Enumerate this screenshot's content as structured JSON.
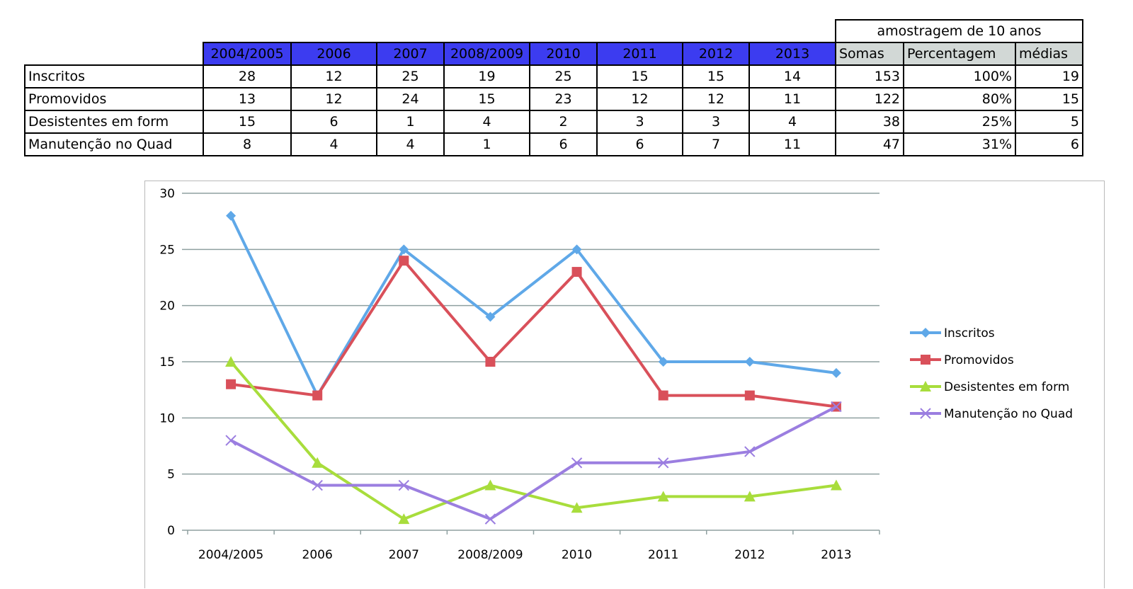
{
  "table": {
    "sample_title": "amostragem de 10 anos",
    "years": [
      "2004/2005",
      "2006",
      "2007",
      "2008/2009",
      "2010",
      "2011",
      "2012",
      "2013"
    ],
    "summary_headers": [
      "Somas",
      "Percentagem",
      "médias"
    ],
    "rows": [
      {
        "label": "Inscritos",
        "values": [
          "28",
          "12",
          "25",
          "19",
          "25",
          "15",
          "15",
          "14"
        ],
        "summary": [
          "153",
          "100%",
          "19"
        ]
      },
      {
        "label": "Promovidos",
        "values": [
          "13",
          "12",
          "24",
          "15",
          "23",
          "12",
          "12",
          "11"
        ],
        "summary": [
          "122",
          "80%",
          "15"
        ]
      },
      {
        "label": "Desistentes em form",
        "values": [
          "15",
          "6",
          "1",
          "4",
          "2",
          "3",
          "3",
          "4"
        ],
        "summary": [
          "38",
          "25%",
          "5"
        ]
      },
      {
        "label": "Manutenção no Quad",
        "values": [
          "8",
          "4",
          "4",
          "1",
          "6",
          "6",
          "7",
          "11"
        ],
        "summary": [
          "47",
          "31%",
          "6"
        ]
      }
    ],
    "colors": {
      "year_header_bg": "#3c3cf0",
      "summary_header_bg": "#d2d8d6"
    }
  },
  "chart_data": {
    "type": "line",
    "categories": [
      "2004/2005",
      "2006",
      "2007",
      "2008/2009",
      "2010",
      "2011",
      "2012",
      "2013"
    ],
    "ylim": [
      0,
      30
    ],
    "yticks": [
      0,
      5,
      10,
      15,
      20,
      25,
      30
    ],
    "grid": true,
    "legend_position": "right",
    "series": [
      {
        "name": "Inscritos",
        "values": [
          28,
          12,
          25,
          19,
          25,
          15,
          15,
          14
        ],
        "color": "#5fa8e8",
        "marker": "diamond"
      },
      {
        "name": "Promovidos",
        "values": [
          13,
          12,
          24,
          15,
          23,
          12,
          12,
          11
        ],
        "color": "#d9505a",
        "marker": "square"
      },
      {
        "name": "Desistentes em form",
        "values": [
          15,
          6,
          1,
          4,
          2,
          3,
          3,
          4
        ],
        "color": "#a8dd3c",
        "marker": "triangle"
      },
      {
        "name": "Manutenção no Quad",
        "values": [
          8,
          4,
          4,
          1,
          6,
          6,
          7,
          11
        ],
        "color": "#9b7ee0",
        "marker": "x"
      }
    ]
  }
}
